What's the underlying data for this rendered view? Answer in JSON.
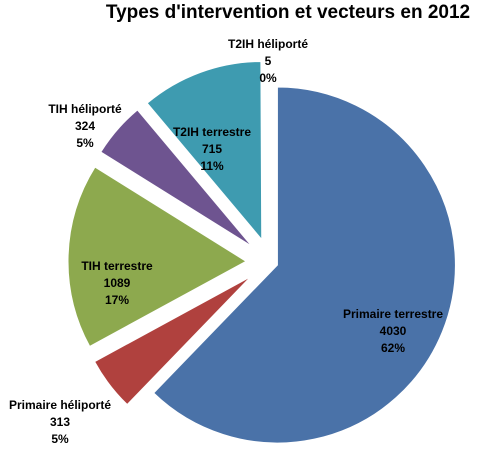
{
  "chart_data": {
    "type": "pie",
    "title": "Types d'intervention et vecteurs en 2012",
    "slices": [
      {
        "label": "Primaire terrestre",
        "value": 4030,
        "percent": "62%",
        "color": "#4A72A8"
      },
      {
        "label": "Primaire héliporté",
        "value": 313,
        "percent": "5%",
        "color": "#B0413E"
      },
      {
        "label": "TIH terrestre",
        "value": 1089,
        "percent": "17%",
        "color": "#8DA94E"
      },
      {
        "label": "TIH héliporté",
        "value": 324,
        "percent": "5%",
        "color": "#6E5490"
      },
      {
        "label": "T2IH terrestre",
        "value": 715,
        "percent": "11%",
        "color": "#3E9BB0"
      },
      {
        "label": "T2IH héliporté",
        "value": 5,
        "percent": "0%",
        "color": "#E8883A"
      }
    ]
  }
}
